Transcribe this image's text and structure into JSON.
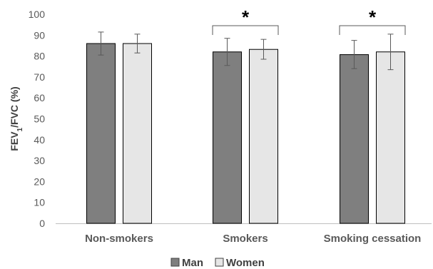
{
  "colors": {
    "man": "#7f7f7f",
    "women": "#e6e6e6",
    "axis": "#bfbfbf",
    "text": "#595959"
  },
  "chart_data": {
    "type": "bar",
    "ylabel_parts": [
      "FEV",
      "1",
      "/FVC (%)"
    ],
    "ylim": [
      0,
      100
    ],
    "yticks": [
      0,
      10,
      20,
      30,
      40,
      50,
      60,
      70,
      80,
      90,
      100
    ],
    "categories": [
      "Non-smokers",
      "Smokers",
      "Smoking cessation"
    ],
    "series": [
      {
        "name": "Man",
        "values": [
          86,
          82,
          80.7
        ],
        "error_low": [
          80.5,
          75.5,
          74
        ],
        "error_high": [
          91.5,
          88.5,
          87.5
        ]
      },
      {
        "name": "Women",
        "values": [
          86,
          83.2,
          82
        ],
        "error_low": [
          81.5,
          78.5,
          73.5
        ],
        "error_high": [
          90.5,
          88,
          90.5
        ]
      }
    ],
    "significance": [
      {
        "category": "Smokers",
        "label": "*"
      },
      {
        "category": "Smoking cessation",
        "label": "*"
      }
    ],
    "grid": false,
    "legend": "bottom"
  }
}
